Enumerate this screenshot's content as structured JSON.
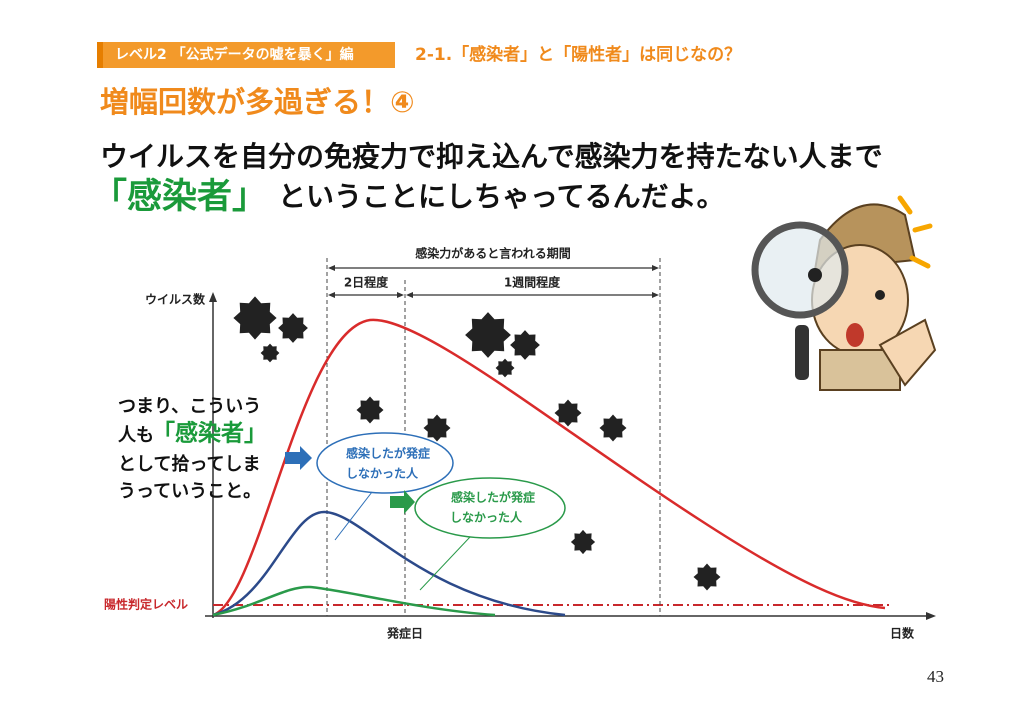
{
  "header": {
    "tag": "レベル2 「公式データの嘘を暴く」編",
    "section": "2-1.「感染者」と「陽性者」は同じなの？"
  },
  "title": "増幅回数が多過ぎる！④",
  "body": {
    "line1": "ウイルスを自分の免疫力で抑え込んで感染力を持たない人まで",
    "highlight": "「感染者」",
    "line2": "ということにしちゃってるんだよ。"
  },
  "diagram": {
    "period_label": "感染力があると言われる期間",
    "early_label": "2日程度",
    "late_label": "1週間程度",
    "y_axis_label": "ウイルス数",
    "threshold_label": "陽性判定レベル",
    "onset_label": "発症日",
    "x_axis_label": "日数",
    "bubble_blue": [
      "感染したが発症",
      "しなかった人"
    ],
    "bubble_green": [
      "感染したが発症",
      "しなかった人"
    ]
  },
  "callout": {
    "line1": "つまり、こういう",
    "line2_prefix": "人も",
    "highlight": "「感染者」",
    "line3": "として拾ってしま",
    "line4": "うっていうこと。"
  },
  "page_number": "43"
}
